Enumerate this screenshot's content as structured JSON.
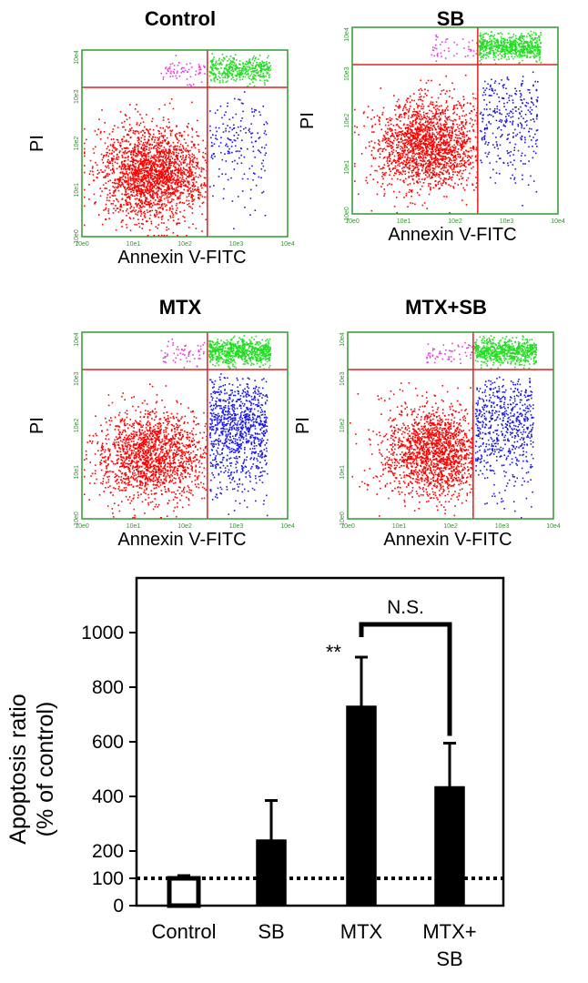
{
  "flow_panels": [
    {
      "title": "Control",
      "xlabel": "Annexin V-FITC",
      "ylabel": "PI",
      "xticks": [
        "10e0",
        "10e1",
        "10e2",
        "10e3",
        "10e4"
      ],
      "yticks": [
        "10e0",
        "10e1",
        "10e2",
        "10e3",
        "10e4"
      ]
    },
    {
      "title": "SB",
      "xlabel": "Annexin V-FITC",
      "ylabel": "PI",
      "xticks": [
        "10e0",
        "10e1",
        "10e2",
        "10e3",
        "10e4"
      ],
      "yticks": [
        "10e0",
        "10e1",
        "10e2",
        "10e3",
        "10e4"
      ]
    },
    {
      "title": "MTX",
      "xlabel": "Annexin V-FITC",
      "ylabel": "PI",
      "xticks": [
        "10e0",
        "10e1",
        "10e2",
        "10e3",
        "10e4"
      ],
      "yticks": [
        "10e0",
        "10e1",
        "10e2",
        "10e3",
        "10e4"
      ]
    },
    {
      "title": "MTX+SB",
      "xlabel": "Annexin V-FITC",
      "ylabel": "PI",
      "xticks": [
        "10e0",
        "10e1",
        "10e2",
        "10e3",
        "10e4"
      ],
      "yticks": [
        "10e0",
        "10e1",
        "10e2",
        "10e3",
        "10e4"
      ]
    }
  ],
  "chart_data": {
    "type": "bar",
    "categories": [
      "Control",
      "SB",
      "MTX",
      "MTX+\nSB"
    ],
    "values": [
      100,
      240,
      730,
      435
    ],
    "errors": [
      10,
      145,
      180,
      160
    ],
    "ylabel_line1": "Apoptosis ratio",
    "ylabel_line2": "(% of control)",
    "yticks": [
      0,
      100,
      200,
      400,
      600,
      800,
      1000
    ],
    "ylim": [
      0,
      1200
    ],
    "reference_line": 100,
    "significance": {
      "label": "**",
      "category": "MTX"
    },
    "bracket": {
      "label": "N.S.",
      "from": "MTX",
      "to": "MTX+\nSB"
    },
    "colors": {
      "control_fill": "#ffffff",
      "treated_fill": "#000000"
    }
  },
  "colors": {
    "frame": "#2e9a2e",
    "gate": "#e02020",
    "live": "#ff0000",
    "early": "#1a1ae6",
    "late": "#22dd22",
    "necrotic": "#e040e0"
  }
}
